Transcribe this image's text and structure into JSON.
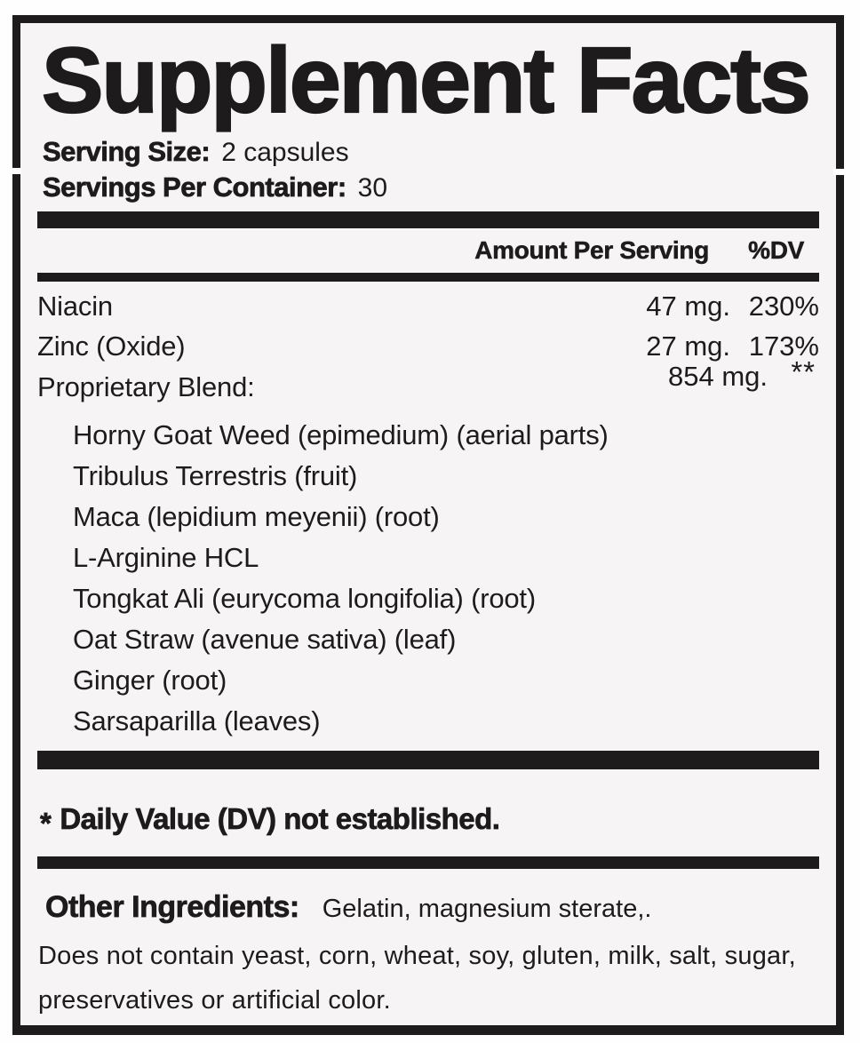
{
  "colors": {
    "ink": "#1d1b1c",
    "paper": "#f6f4f5",
    "page": "#fefefe"
  },
  "label": {
    "title": "Supplement Facts",
    "serving_size_label": "Serving Size:",
    "serving_size_value": "2 capsules",
    "servings_per_container_label": "Servings Per Container:",
    "servings_per_container_value": "30",
    "header": {
      "amount": "Amount Per Serving",
      "dv": "%DV"
    },
    "nutrients": [
      {
        "name": "Niacin",
        "amount": "47 mg.",
        "dv": "230%"
      },
      {
        "name": "Zinc (Oxide)",
        "amount": "27 mg.",
        "dv": "173%"
      },
      {
        "name": "Proprietary Blend:",
        "amount": "854 mg.",
        "dv": "**"
      }
    ],
    "blend": [
      "Horny Goat Weed (epimedium) (aerial parts)",
      "Tribulus Terrestris (fruit)",
      "Maca (lepidium meyenii) (root)",
      "L-Arginine HCL",
      "Tongkat Ali (eurycoma longifolia) (root)",
      "Oat Straw (avenue sativa) (leaf)",
      "Ginger (root)",
      "Sarsaparilla (leaves)"
    ],
    "footnote_star": "*",
    "footnote_text": "Daily Value (DV) not established.",
    "other": {
      "label": "Other Ingredients:",
      "value": "Gelatin, magnesium sterate,.",
      "line2": "Does not contain yeast, corn, wheat, soy, gluten, milk, salt, sugar,",
      "line3": "preservatives or artificial color."
    }
  }
}
